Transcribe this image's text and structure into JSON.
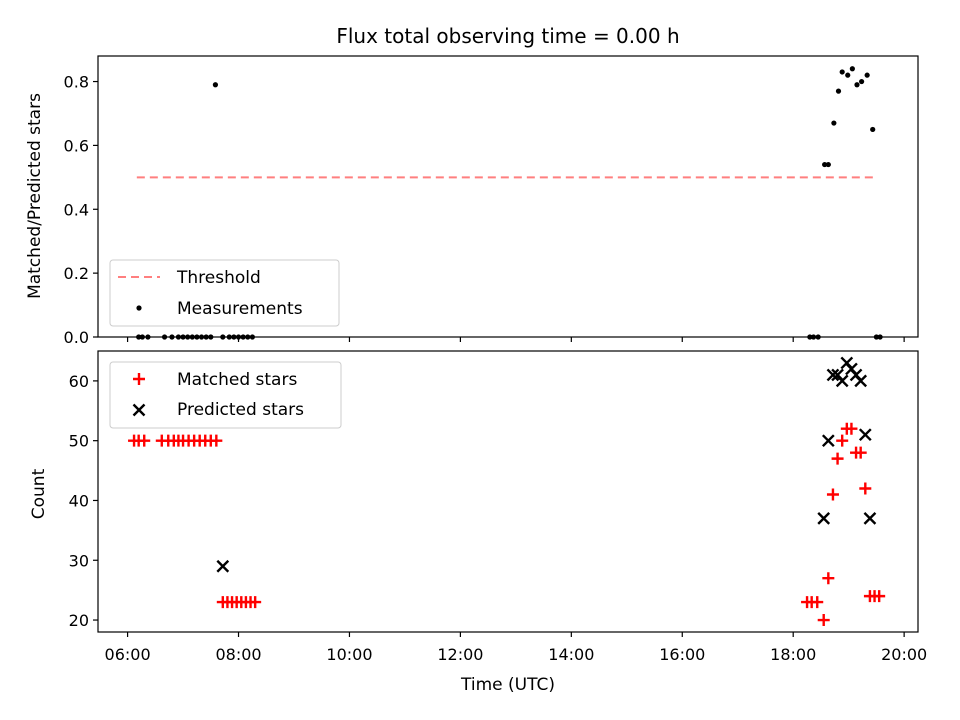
{
  "chart_data": [
    {
      "type": "scatter",
      "title": "Flux total observing time = 0.00 h",
      "xlabel": "",
      "ylabel": "Matched/Predicted stars",
      "xlim": [
        "05:28",
        "20:15"
      ],
      "ylim": [
        0,
        0.88
      ],
      "yticks": [
        "0.0",
        "0.2",
        "0.4",
        "0.6",
        "0.8"
      ],
      "ytick_values": [
        0,
        0.2,
        0.4,
        0.6,
        0.8
      ],
      "grid": false,
      "legend_position": "lower-left",
      "series": [
        {
          "name": "Threshold",
          "kind": "dashed-line",
          "color": "#ff7f7f",
          "x": [
            "06:10",
            "19:30"
          ],
          "y": [
            0.5,
            0.5
          ]
        },
        {
          "name": "Measurements",
          "kind": "point",
          "color": "#000000",
          "x": [
            "06:12",
            "06:16",
            "06:22",
            "06:40",
            "06:48",
            "06:55",
            "07:00",
            "07:05",
            "07:10",
            "07:15",
            "07:20",
            "07:25",
            "07:30",
            "07:35",
            "07:43",
            "07:50",
            "07:55",
            "08:00",
            "08:05",
            "08:10",
            "08:15",
            "18:18",
            "18:22",
            "18:27",
            "18:34",
            "18:38",
            "18:44",
            "18:49",
            "18:53",
            "18:59",
            "19:04",
            "19:09",
            "19:14",
            "19:20",
            "19:26",
            "19:30",
            "19:34"
          ],
          "y": [
            0,
            0,
            0,
            0,
            0,
            0,
            0,
            0,
            0,
            0,
            0,
            0,
            0,
            0.79,
            0,
            0,
            0,
            0,
            0,
            0,
            0,
            0,
            0,
            0,
            0.54,
            0.54,
            0.67,
            0.77,
            0.83,
            0.82,
            0.84,
            0.79,
            0.8,
            0.82,
            0.65,
            0,
            0
          ]
        }
      ]
    },
    {
      "type": "scatter",
      "title": "",
      "xlabel": "Time (UTC)",
      "ylabel": "Count",
      "xlim": [
        "05:28",
        "20:15"
      ],
      "ylim": [
        18,
        65
      ],
      "xticks": [
        "06:00",
        "08:00",
        "10:00",
        "12:00",
        "14:00",
        "16:00",
        "18:00",
        "20:00"
      ],
      "yticks": [
        "20",
        "30",
        "40",
        "50",
        "60"
      ],
      "ytick_values": [
        20,
        30,
        40,
        50,
        60
      ],
      "grid": false,
      "legend_position": "upper-left",
      "series": [
        {
          "name": "Matched stars",
          "marker": "+",
          "color": "#ff0000",
          "x": [
            "06:07",
            "06:12",
            "06:18",
            "06:37",
            "06:44",
            "06:50",
            "06:55",
            "07:00",
            "07:06",
            "07:12",
            "07:18",
            "07:24",
            "07:30",
            "07:36",
            "07:43",
            "07:48",
            "07:53",
            "07:58",
            "08:03",
            "08:08",
            "08:13",
            "08:18",
            "18:15",
            "18:20",
            "18:26",
            "18:33",
            "18:38",
            "18:43",
            "18:48",
            "18:53",
            "18:58",
            "19:03",
            "19:08",
            "19:13",
            "19:18",
            "19:23",
            "19:28",
            "19:33"
          ],
          "y": [
            50,
            50,
            50,
            50,
            50,
            50,
            50,
            50,
            50,
            50,
            50,
            50,
            50,
            50,
            23,
            23,
            23,
            23,
            23,
            23,
            23,
            23,
            23,
            23,
            23,
            20,
            27,
            41,
            47,
            50,
            52,
            52,
            48,
            48,
            42,
            24,
            24,
            24
          ]
        },
        {
          "name": "Predicted stars",
          "marker": "x",
          "color": "#000000",
          "x": [
            "07:43",
            "18:33",
            "18:38",
            "18:43",
            "18:48",
            "18:53",
            "18:58",
            "19:03",
            "19:08",
            "19:13",
            "19:18",
            "19:23"
          ],
          "y": [
            29,
            37,
            50,
            61,
            61,
            60,
            63,
            62,
            61,
            60,
            51,
            37
          ]
        }
      ]
    }
  ]
}
